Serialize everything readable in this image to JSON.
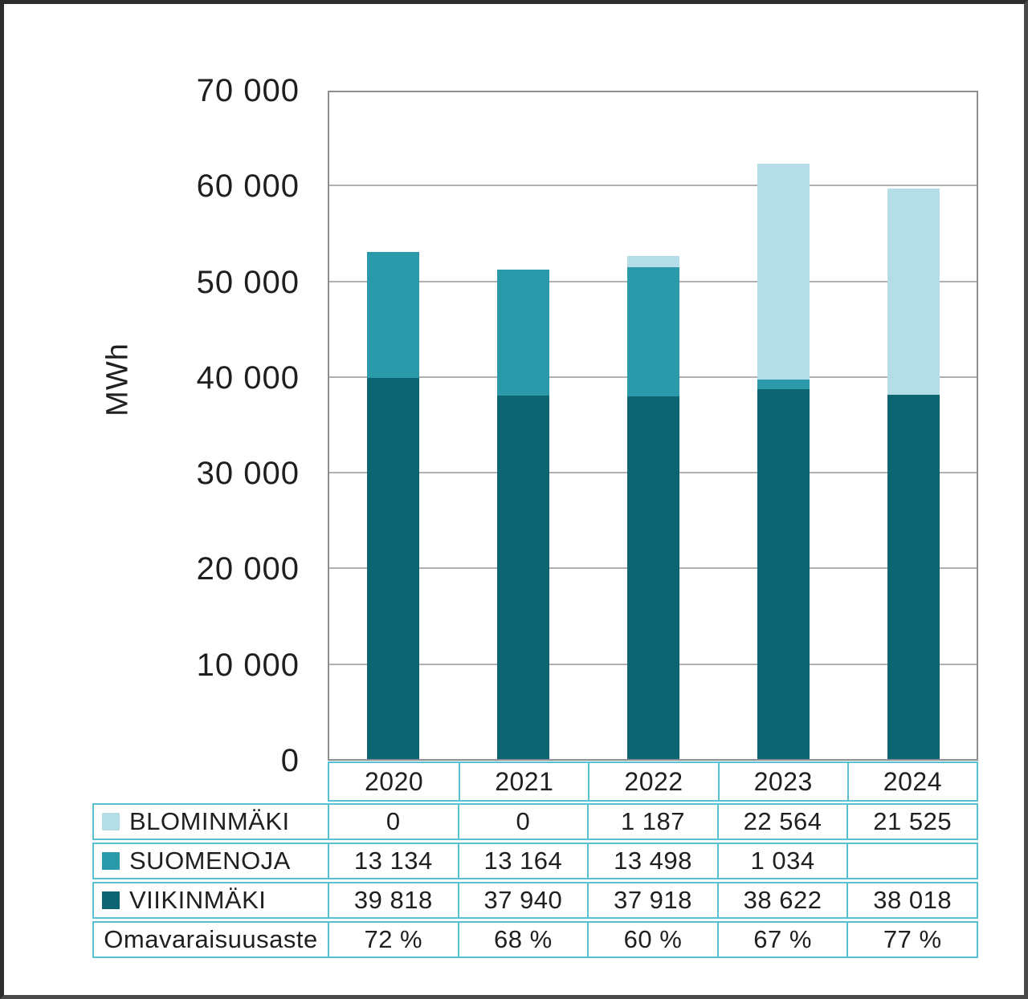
{
  "chart_data": {
    "type": "bar",
    "stacked": true,
    "title": "",
    "ylabel": "MWh",
    "xlabel": "",
    "ylim": [
      0,
      70000
    ],
    "ytick_step": 10000,
    "yticks": [
      0,
      10000,
      20000,
      30000,
      40000,
      50000,
      60000,
      70000
    ],
    "yticks_display": [
      "0",
      "10 000",
      "20 000",
      "30 000",
      "40 000",
      "50 000",
      "60 000",
      "70 000"
    ],
    "grid": true,
    "legend_position": "table-left-column",
    "categories": [
      "2020",
      "2021",
      "2022",
      "2023",
      "2024"
    ],
    "stack_order_bottom_to_top": [
      "VIIKINMÄKI",
      "SUOMENOJA",
      "BLOMINMÄKI"
    ],
    "series": [
      {
        "name": "BLOMINMÄKI",
        "color": "#b5dde8",
        "values": [
          0,
          0,
          1187,
          22564,
          21525
        ],
        "display": [
          "0",
          "0",
          "1 187",
          "22 564",
          "21 525"
        ]
      },
      {
        "name": "SUOMENOJA",
        "color": "#2a9aaa",
        "values": [
          13134,
          13164,
          13498,
          1034,
          0
        ],
        "display": [
          "13 134",
          "13 164",
          "13 498",
          "1 034",
          ""
        ]
      },
      {
        "name": "VIIKINMÄKI",
        "color": "#0c6570",
        "values": [
          39818,
          37940,
          37918,
          38622,
          38018
        ],
        "display": [
          "39 818",
          "37 940",
          "37 918",
          "38 622",
          "38 018"
        ]
      }
    ],
    "extra_rows": [
      {
        "name": "Omavaraisuusaste",
        "display": [
          "72 %",
          "68 %",
          "60 %",
          "67 %",
          "77 %"
        ]
      }
    ]
  },
  "style": {
    "table_border_color": "#57c0d1",
    "gridline_color": "#b0b0b0",
    "plot_border_color": "#8e8e8e",
    "text_color": "#1f1f1f"
  }
}
